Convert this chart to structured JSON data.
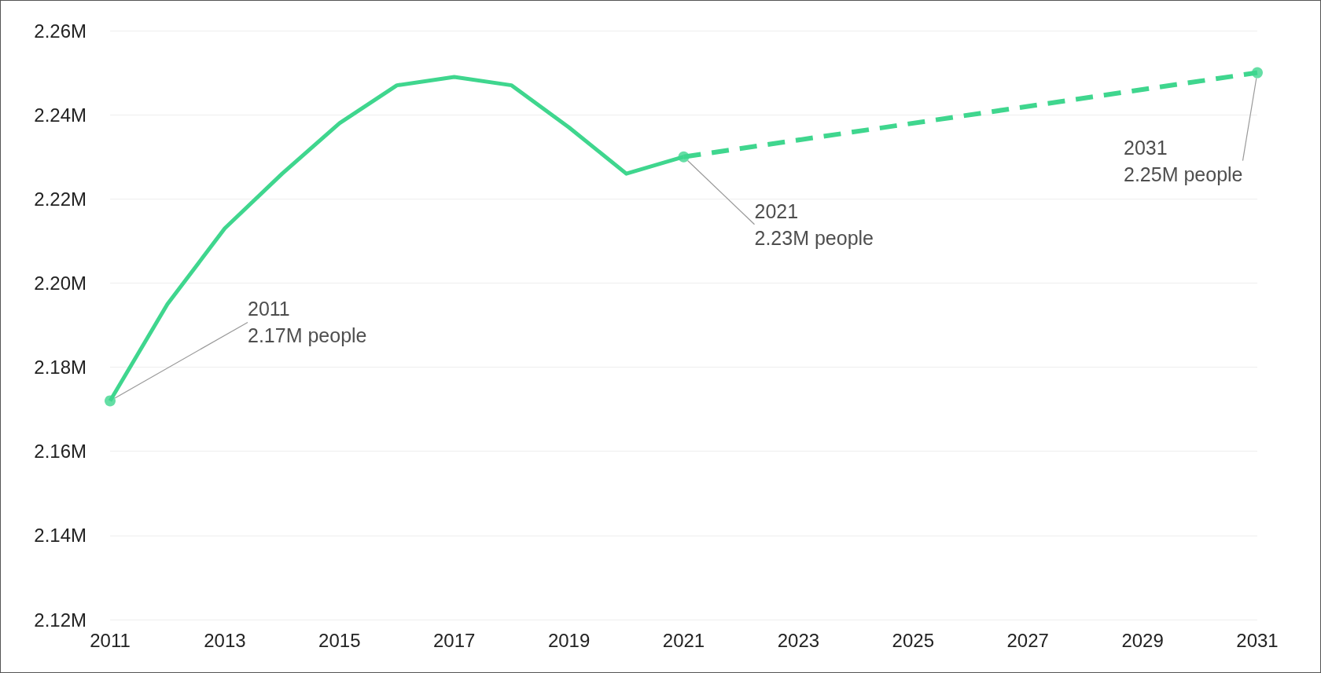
{
  "chart_data": {
    "type": "line",
    "xlim": [
      2011,
      2031
    ],
    "xticks": [
      2011,
      2013,
      2015,
      2017,
      2019,
      2021,
      2023,
      2025,
      2027,
      2029,
      2031
    ],
    "ylim": [
      2.12,
      2.26
    ],
    "yticks": [
      {
        "value": 2.12,
        "label": "2.12M"
      },
      {
        "value": 2.14,
        "label": "2.14M"
      },
      {
        "value": 2.16,
        "label": "2.16M"
      },
      {
        "value": 2.18,
        "label": "2.18M"
      },
      {
        "value": 2.2,
        "label": "2.20M"
      },
      {
        "value": 2.22,
        "label": "2.22M"
      },
      {
        "value": 2.24,
        "label": "2.24M"
      },
      {
        "value": 2.26,
        "label": "2.26M"
      }
    ],
    "grid": "y",
    "series": [
      {
        "color": "#3fd68e",
        "line_style": "solid",
        "x": [
          2011,
          2012,
          2013,
          2014,
          2015,
          2016,
          2017,
          2018,
          2019,
          2020,
          2021
        ],
        "values": [
          2.172,
          2.195,
          2.213,
          2.226,
          2.238,
          2.247,
          2.249,
          2.247,
          2.237,
          2.226,
          2.23
        ]
      },
      {
        "color": "#3fd68e",
        "line_style": "dashed",
        "x": [
          2021,
          2031
        ],
        "values": [
          2.23,
          2.25
        ]
      }
    ],
    "annotations": [
      {
        "text": "2011\n2.17M people",
        "x": 2011,
        "y": 2.172
      },
      {
        "text": "2021\n2.23M people",
        "x": 2021,
        "y": 2.23
      },
      {
        "text": "2031\n2.25M people",
        "x": 2031,
        "y": 2.25
      }
    ]
  }
}
